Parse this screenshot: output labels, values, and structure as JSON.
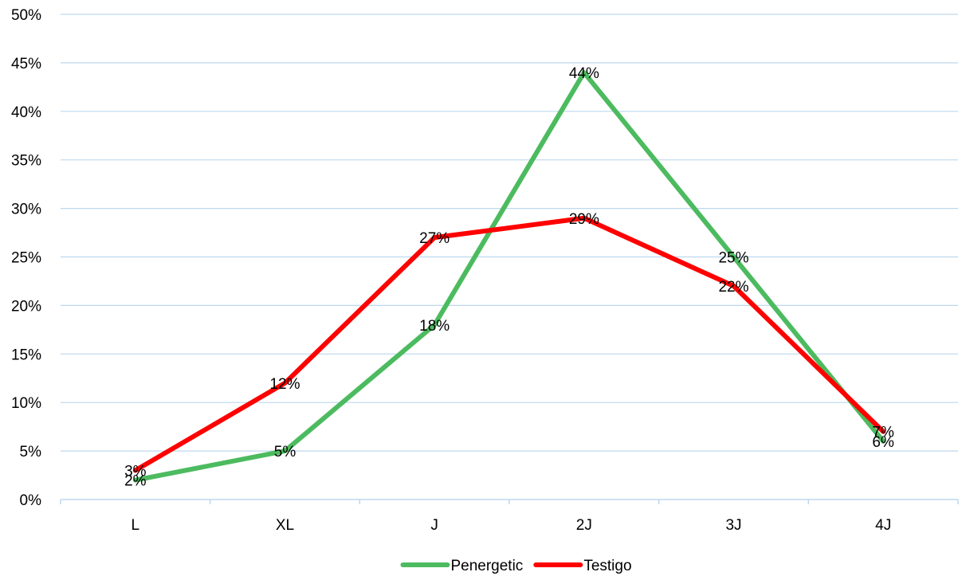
{
  "chart_data": {
    "type": "line",
    "categories": [
      "L",
      "XL",
      "J",
      "2J",
      "3J",
      "4J"
    ],
    "series": [
      {
        "name": "Penergetic",
        "values": [
          2,
          5,
          18,
          44,
          25,
          6
        ],
        "color": "#4cbb5f"
      },
      {
        "name": "Testigo",
        "values": [
          3,
          12,
          27,
          29,
          22,
          7
        ],
        "color": "#ff0000"
      }
    ],
    "y_tick_labels": [
      "0%",
      "5%",
      "10%",
      "15%",
      "20%",
      "25%",
      "30%",
      "35%",
      "40%",
      "45%",
      "50%"
    ],
    "data_labels": {
      "Penergetic": [
        "2%",
        "5%",
        "18%",
        "44%",
        "25%",
        "6%"
      ],
      "Testigo": [
        "3%",
        "12%",
        "27%",
        "29%",
        "22%",
        "7%"
      ]
    },
    "ylim": [
      0,
      50
    ],
    "grid": true,
    "gridline_color": "#bdd7ee",
    "legend_position": "bottom"
  }
}
